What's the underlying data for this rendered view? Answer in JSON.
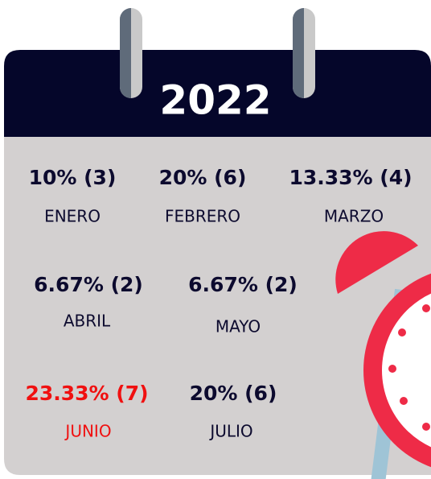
{
  "title": "2022",
  "months": [
    {
      "value": "10% (3)",
      "name": "ENERO"
    },
    {
      "value": "20% (6)",
      "name": "FEBRERO"
    },
    {
      "value": "13.33% (4)",
      "name": "MARZO"
    },
    {
      "value": "6.67% (2)",
      "name": "ABRIL"
    },
    {
      "value": "6.67% (2)",
      "name": "MAYO"
    },
    {
      "value": "23.33% (7)",
      "name": "JUNIO"
    },
    {
      "value": "20% (6)",
      "name": "JULIO"
    }
  ]
}
